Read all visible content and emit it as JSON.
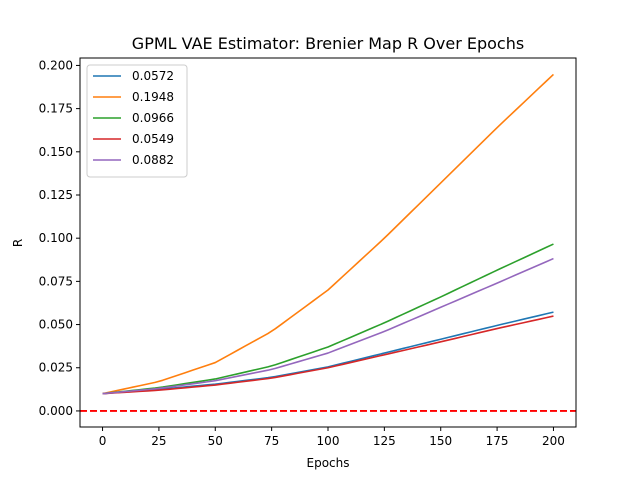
{
  "chart_data": {
    "type": "line",
    "title": "GPML VAE Estimator: Brenier Map R Over Epochs",
    "xlabel": "Epochs",
    "ylabel": "R",
    "xlim": [
      -10,
      210
    ],
    "ylim": [
      -0.0093,
      0.2043
    ],
    "xticks": [
      0,
      25,
      50,
      75,
      100,
      125,
      150,
      175,
      200
    ],
    "yticks": [
      0.0,
      0.025,
      0.05,
      0.075,
      0.1,
      0.125,
      0.15,
      0.175,
      0.2
    ],
    "ytick_labels": [
      "0.000",
      "0.025",
      "0.050",
      "0.075",
      "0.100",
      "0.125",
      "0.150",
      "0.175",
      "0.200"
    ],
    "grid": false,
    "legend_position": "top-left",
    "x": [
      0,
      25,
      50,
      75,
      100,
      125,
      150,
      175,
      200
    ],
    "series": [
      {
        "name": "0.0572",
        "color": "#1f77b4",
        "values": [
          0.01,
          0.0125,
          0.0155,
          0.0195,
          0.0255,
          0.0335,
          0.0415,
          0.0495,
          0.0572
        ]
      },
      {
        "name": "0.1948",
        "color": "#ff7f0e",
        "values": [
          0.01,
          0.017,
          0.028,
          0.046,
          0.07,
          0.1,
          0.132,
          0.164,
          0.1948
        ]
      },
      {
        "name": "0.0966",
        "color": "#2ca02c",
        "values": [
          0.01,
          0.0135,
          0.0185,
          0.026,
          0.037,
          0.051,
          0.066,
          0.0815,
          0.0966
        ]
      },
      {
        "name": "0.0549",
        "color": "#d62728",
        "values": [
          0.01,
          0.012,
          0.015,
          0.019,
          0.025,
          0.0325,
          0.04,
          0.0477,
          0.0549
        ]
      },
      {
        "name": "0.0882",
        "color": "#9467bd",
        "values": [
          0.01,
          0.013,
          0.0175,
          0.024,
          0.0335,
          0.046,
          0.06,
          0.074,
          0.0882
        ]
      }
    ],
    "reference_line": {
      "y": 0.0,
      "color": "#ff0000",
      "style": "dashed"
    }
  }
}
